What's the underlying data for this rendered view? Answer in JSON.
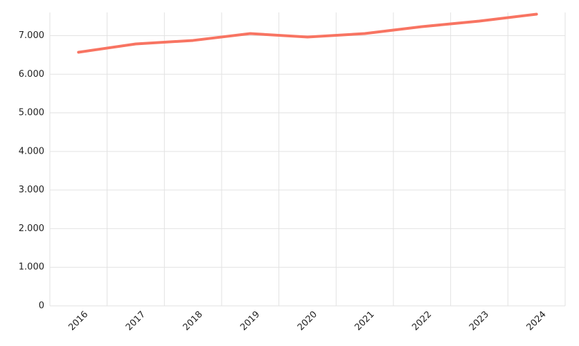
{
  "chart_data": {
    "type": "line",
    "categories": [
      "2016",
      "2017",
      "2018",
      "2019",
      "2020",
      "2021",
      "2022",
      "2023",
      "2024"
    ],
    "series": [
      {
        "color": "#f87462",
        "values": [
          6570,
          6785,
          6875,
          7053,
          6964,
          7053,
          7232,
          7376,
          7555
        ]
      }
    ],
    "ylim": [
      0,
      7600
    ],
    "yticks": [
      0,
      {
        "value": 1000,
        "label": "1.000"
      },
      {
        "value": 2000,
        "label": "2.000"
      },
      {
        "value": 3000,
        "label": "3.000"
      },
      {
        "value": 4000,
        "label": "4.000"
      },
      {
        "value": 5000,
        "label": "5.000"
      },
      {
        "value": 6000,
        "label": "6.000"
      },
      {
        "value": 7000,
        "label": "7.000"
      }
    ],
    "grid": true
  }
}
